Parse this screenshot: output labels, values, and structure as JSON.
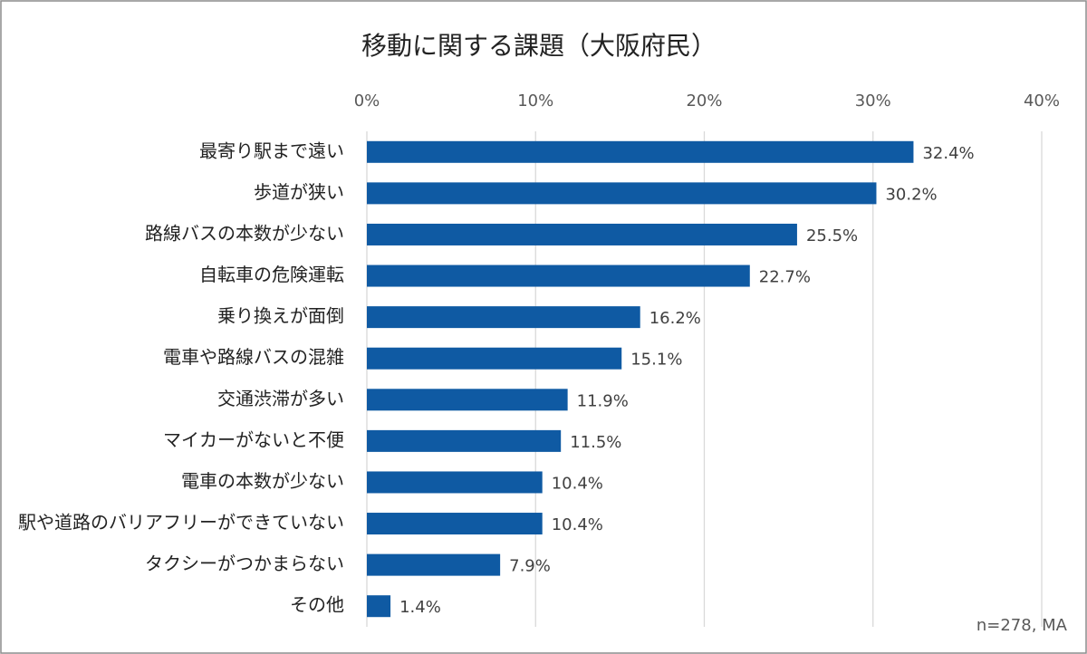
{
  "chart_data": {
    "type": "bar",
    "orientation": "horizontal",
    "title": "移動に関する課題（大阪府民）",
    "note": "n=278, MA",
    "categories": [
      "最寄り駅まで遠い",
      "歩道が狭い",
      "路線バスの本数が少ない",
      "自転車の危険運転",
      "乗り換えが面倒",
      "電車や路線バスの混雑",
      "交通渋滞が多い",
      "マイカーがないと不便",
      "電車の本数が少ない",
      "駅や道路のバリアフリーができていない",
      "タクシーがつかまらない",
      "その他"
    ],
    "values": [
      32.4,
      30.2,
      25.5,
      22.7,
      16.2,
      15.1,
      11.9,
      11.5,
      10.4,
      10.4,
      7.9,
      1.4
    ],
    "value_labels": [
      "32.4%",
      "30.2%",
      "25.5%",
      "22.7%",
      "16.2%",
      "15.1%",
      "11.9%",
      "11.5%",
      "10.4%",
      "10.4%",
      "7.9%",
      "1.4%"
    ],
    "color": "#0f5aa3",
    "xlim": [
      0,
      40
    ],
    "xticks": [
      {
        "value": 0,
        "label": "0%"
      },
      {
        "value": 10,
        "label": "10%"
      },
      {
        "value": 20,
        "label": "20%"
      },
      {
        "value": 30,
        "label": "30%"
      },
      {
        "value": 40,
        "label": "40%"
      }
    ],
    "grid": true
  }
}
